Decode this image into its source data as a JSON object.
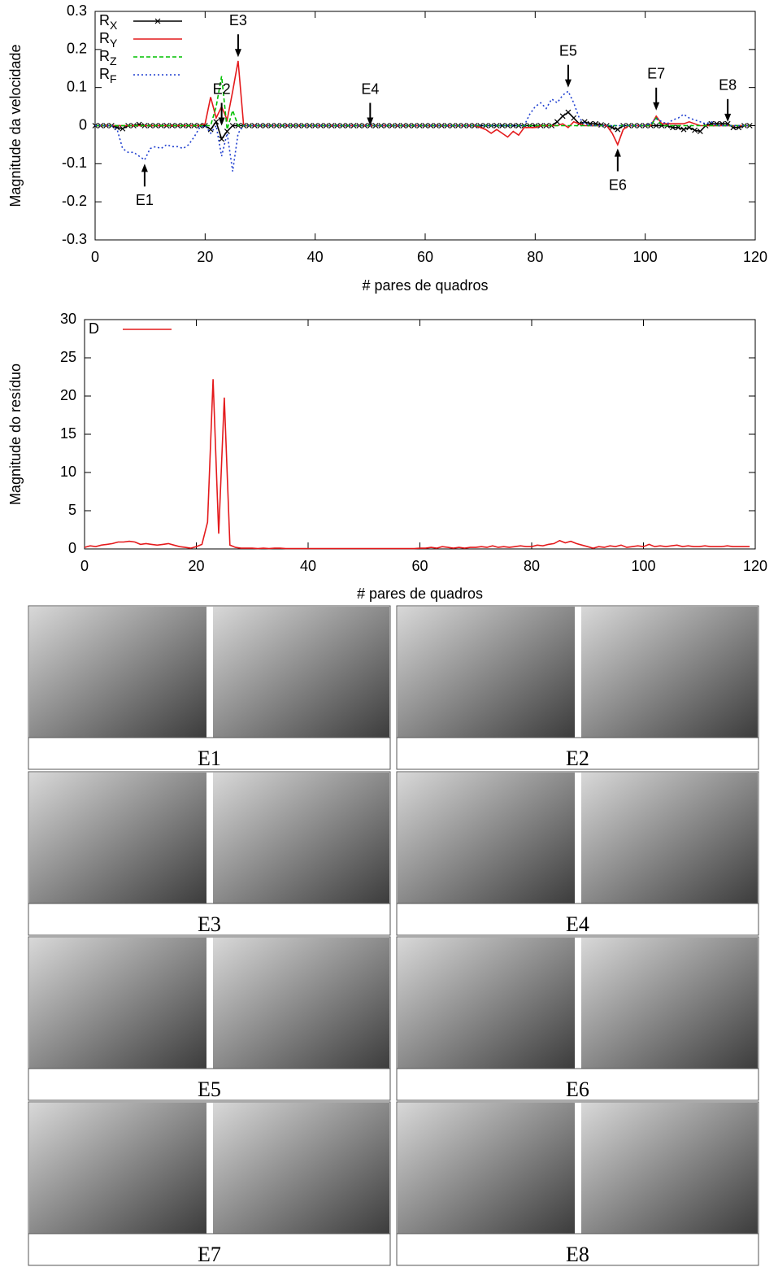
{
  "chart_data": [
    {
      "type": "line",
      "ylabel": "Magnitude da velocidade",
      "xlabel": "# pares de quadros",
      "xlim": [
        0,
        120
      ],
      "xticks": [
        0,
        20,
        40,
        60,
        80,
        100,
        120
      ],
      "ylim": [
        -0.3,
        0.3
      ],
      "yticks": [
        -0.3,
        -0.2,
        -0.1,
        0,
        0.1,
        0.2,
        0.3
      ],
      "legend": "top-left",
      "x": [
        0,
        1,
        2,
        3,
        4,
        5,
        6,
        7,
        8,
        9,
        10,
        11,
        12,
        13,
        14,
        15,
        16,
        17,
        18,
        19,
        20,
        21,
        22,
        23,
        24,
        25,
        26,
        27,
        28,
        29,
        30,
        31,
        32,
        33,
        34,
        35,
        36,
        37,
        38,
        39,
        40,
        41,
        42,
        43,
        44,
        45,
        46,
        47,
        48,
        49,
        50,
        51,
        52,
        53,
        54,
        55,
        56,
        57,
        58,
        59,
        60,
        61,
        62,
        63,
        64,
        65,
        66,
        67,
        68,
        69,
        70,
        71,
        72,
        73,
        74,
        75,
        76,
        77,
        78,
        79,
        80,
        81,
        82,
        83,
        84,
        85,
        86,
        87,
        88,
        89,
        90,
        91,
        92,
        93,
        94,
        95,
        96,
        97,
        98,
        99,
        100,
        101,
        102,
        103,
        104,
        105,
        106,
        107,
        108,
        109,
        110,
        111,
        112,
        113,
        114,
        115,
        116,
        117,
        118,
        119
      ],
      "series": [
        {
          "name": "RX",
          "color": "#000000",
          "style": "solid",
          "marker": "x",
          "values": [
            0,
            0,
            0,
            0,
            -0.005,
            -0.008,
            0,
            0,
            0.003,
            0,
            0,
            0,
            0,
            0,
            0,
            0,
            0,
            0,
            0,
            0,
            0,
            -0.01,
            0.01,
            -0.035,
            -0.015,
            0,
            0,
            0,
            0,
            0,
            0,
            0,
            0,
            0,
            0,
            0,
            0,
            0,
            0,
            0,
            0,
            0,
            0,
            0,
            0,
            0,
            0,
            0,
            0,
            0,
            0,
            0,
            0,
            0,
            0,
            0,
            0,
            0,
            0,
            0,
            0,
            0,
            0,
            0,
            0,
            0,
            0,
            0,
            0,
            0,
            0,
            0,
            0,
            0,
            0,
            0,
            0,
            0,
            0,
            0,
            0,
            0,
            0,
            0,
            0.01,
            0.025,
            0.035,
            0.02,
            0.005,
            0.01,
            0.005,
            0.005,
            0.002,
            0,
            -0.005,
            -0.01,
            0,
            0,
            0,
            0,
            0,
            0,
            0,
            0,
            0,
            -0.005,
            -0.005,
            -0.01,
            -0.005,
            -0.012,
            -0.015,
            0,
            0.005,
            0.005,
            0.005,
            0.005,
            -0.005,
            -0.005,
            0,
            0
          ]
        },
        {
          "name": "RY",
          "color": "#e41a1c",
          "style": "solid",
          "values": [
            0,
            0,
            0,
            0,
            0,
            0,
            0,
            0,
            0,
            0,
            0,
            0,
            0,
            0,
            0,
            0,
            0,
            0,
            0,
            0,
            0.005,
            0.075,
            0.02,
            0.05,
            0.015,
            0.09,
            0.17,
            0,
            0,
            0,
            0,
            0,
            0,
            0,
            0,
            0,
            0,
            0,
            0,
            0,
            0,
            0,
            0,
            0,
            0,
            0,
            0,
            0,
            0,
            0,
            0,
            0,
            0,
            0,
            0,
            0,
            0,
            0,
            0,
            0,
            0,
            0,
            0,
            0,
            0,
            0,
            0,
            0,
            0,
            0,
            -0.005,
            -0.01,
            -0.02,
            -0.01,
            -0.02,
            -0.03,
            -0.015,
            -0.025,
            -0.005,
            -0.005,
            -0.005,
            0,
            0,
            0,
            0,
            0.005,
            -0.005,
            0.01,
            0.005,
            0,
            0,
            0,
            0,
            0,
            -0.02,
            -0.05,
            -0.01,
            0,
            0,
            0,
            0,
            0,
            0.025,
            0.005,
            0.005,
            0.005,
            0.005,
            0.005,
            0.01,
            0.005,
            0,
            0,
            0,
            0,
            0,
            0,
            0,
            0,
            0,
            0
          ]
        },
        {
          "name": "RZ",
          "color": "#00c000",
          "style": "dashed",
          "values": [
            0,
            0,
            0,
            0,
            0,
            0,
            0,
            0,
            0,
            0,
            0,
            0,
            0,
            0,
            0,
            0,
            0,
            0,
            0,
            0,
            0,
            0,
            0.05,
            0.13,
            -0.01,
            0.04,
            0,
            0,
            0,
            0,
            0,
            0,
            0,
            0,
            0,
            0,
            0,
            0,
            0,
            0,
            0,
            0,
            0,
            0,
            0,
            0,
            0,
            0,
            0,
            0,
            0,
            0,
            0,
            0,
            0,
            0,
            0,
            0,
            0,
            0,
            0,
            0,
            0,
            0,
            0,
            0,
            0,
            0,
            0,
            0,
            0,
            0,
            0,
            0,
            0,
            0,
            0,
            0,
            0,
            0,
            0,
            0,
            0,
            0,
            0,
            0,
            0,
            0,
            0,
            0,
            0,
            0,
            0,
            0,
            0,
            0,
            0,
            0,
            0,
            0,
            0,
            0,
            0.02,
            0,
            0,
            0,
            0,
            0,
            0,
            0,
            0,
            0,
            0,
            0,
            0,
            0,
            0,
            0,
            0,
            0
          ]
        },
        {
          "name": "RF",
          "color": "#1f3fd0",
          "style": "dotted",
          "values": [
            0,
            0,
            0,
            0,
            -0.01,
            -0.06,
            -0.07,
            -0.07,
            -0.08,
            -0.09,
            -0.06,
            -0.055,
            -0.06,
            -0.05,
            -0.055,
            -0.055,
            -0.06,
            -0.05,
            -0.03,
            -0.005,
            0,
            -0.02,
            0,
            -0.08,
            -0.02,
            -0.12,
            -0.02,
            0,
            0,
            0,
            0,
            0,
            0,
            0,
            0,
            0,
            0,
            0,
            0,
            0,
            0,
            0,
            0,
            0,
            0,
            0,
            0,
            0,
            0,
            0,
            0,
            0,
            0,
            0,
            0,
            0,
            0,
            0,
            0,
            0,
            0,
            0,
            0,
            0,
            0,
            0,
            0,
            0,
            0,
            0,
            0,
            0,
            0,
            0,
            0,
            0,
            0,
            0,
            0,
            0.03,
            0.05,
            0.06,
            0.045,
            0.07,
            0.06,
            0.08,
            0.09,
            0.06,
            0.02,
            0.005,
            0,
            0,
            0,
            0,
            0,
            0,
            0,
            0,
            0,
            0,
            0,
            0.005,
            0.02,
            0.01,
            0.005,
            0.015,
            0.02,
            0.03,
            0.02,
            0.015,
            0.01,
            0.005,
            0.01,
            0,
            0,
            0,
            0,
            0,
            0,
            0
          ]
        }
      ],
      "annotations": [
        {
          "text": "E1",
          "x": 9,
          "y": -0.1,
          "dir": "up"
        },
        {
          "text": "E2",
          "x": 23,
          "y": 0.0,
          "dir": "down"
        },
        {
          "text": "E3",
          "x": 26,
          "y": 0.18,
          "dir": "down"
        },
        {
          "text": "E4",
          "x": 50,
          "y": 0.0,
          "dir": "down"
        },
        {
          "text": "E5",
          "x": 86,
          "y": 0.1,
          "dir": "down"
        },
        {
          "text": "E6",
          "x": 95,
          "y": -0.06,
          "dir": "up"
        },
        {
          "text": "E7",
          "x": 102,
          "y": 0.04,
          "dir": "down"
        },
        {
          "text": "E8",
          "x": 115,
          "y": 0.01,
          "dir": "down"
        }
      ]
    },
    {
      "type": "line",
      "ylabel": "Magnitude do resíduo",
      "xlabel": "# pares de quadros",
      "xlim": [
        0,
        120
      ],
      "xticks": [
        0,
        20,
        40,
        60,
        80,
        100,
        120
      ],
      "ylim": [
        0,
        30
      ],
      "yticks": [
        0,
        5,
        10,
        15,
        20,
        25,
        30
      ],
      "legend": "top-left",
      "x": [
        0,
        1,
        2,
        3,
        4,
        5,
        6,
        7,
        8,
        9,
        10,
        11,
        12,
        13,
        14,
        15,
        16,
        17,
        18,
        19,
        20,
        21,
        22,
        23,
        24,
        25,
        26,
        27,
        28,
        29,
        30,
        31,
        32,
        33,
        34,
        35,
        36,
        37,
        38,
        39,
        40,
        41,
        42,
        43,
        44,
        45,
        46,
        47,
        48,
        49,
        50,
        51,
        52,
        53,
        54,
        55,
        56,
        57,
        58,
        59,
        60,
        61,
        62,
        63,
        64,
        65,
        66,
        67,
        68,
        69,
        70,
        71,
        72,
        73,
        74,
        75,
        76,
        77,
        78,
        79,
        80,
        81,
        82,
        83,
        84,
        85,
        86,
        87,
        88,
        89,
        90,
        91,
        92,
        93,
        94,
        95,
        96,
        97,
        98,
        99,
        100,
        101,
        102,
        103,
        104,
        105,
        106,
        107,
        108,
        109,
        110,
        111,
        112,
        113,
        114,
        115,
        116,
        117,
        118,
        119
      ],
      "series": [
        {
          "name": "D",
          "color": "#e41a1c",
          "style": "solid",
          "values": [
            0.2,
            0.4,
            0.3,
            0.5,
            0.6,
            0.7,
            0.9,
            0.9,
            1,
            0.9,
            0.6,
            0.7,
            0.6,
            0.5,
            0.6,
            0.7,
            0.5,
            0.3,
            0.2,
            0.1,
            0.3,
            0.6,
            3.5,
            22.2,
            2,
            19.8,
            0.5,
            0.2,
            0.1,
            0.1,
            0.1,
            0.05,
            0.1,
            0.05,
            0.1,
            0.1,
            0.05,
            0.05,
            0.05,
            0.05,
            0.05,
            0.05,
            0.05,
            0.05,
            0.05,
            0.05,
            0.05,
            0.05,
            0.05,
            0.05,
            0.05,
            0.05,
            0.05,
            0.05,
            0.05,
            0.05,
            0.05,
            0.05,
            0.05,
            0.05,
            0.1,
            0.1,
            0.2,
            0.1,
            0.3,
            0.2,
            0.1,
            0.2,
            0.1,
            0.2,
            0.2,
            0.3,
            0.2,
            0.4,
            0.2,
            0.3,
            0.2,
            0.3,
            0.4,
            0.3,
            0.3,
            0.5,
            0.4,
            0.6,
            0.7,
            1.1,
            0.8,
            1,
            0.7,
            0.5,
            0.3,
            0.1,
            0.3,
            0.2,
            0.4,
            0.3,
            0.5,
            0.2,
            0.3,
            0.4,
            0.3,
            0.6,
            0.3,
            0.4,
            0.3,
            0.4,
            0.5,
            0.3,
            0.4,
            0.3,
            0.3,
            0.4,
            0.3,
            0.3,
            0.3,
            0.4,
            0.3,
            0.3,
            0.3,
            0.3
          ]
        }
      ]
    }
  ],
  "panels": [
    "E1",
    "E2",
    "E3",
    "E4",
    "E5",
    "E6",
    "E7",
    "E8"
  ]
}
